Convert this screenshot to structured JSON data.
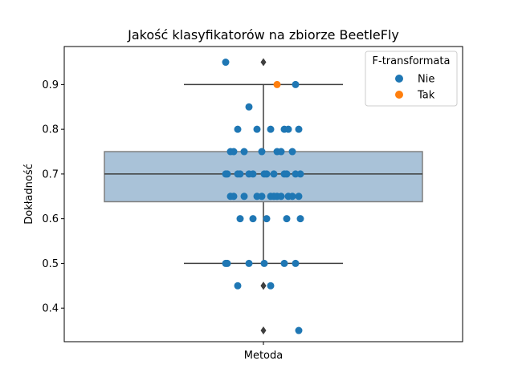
{
  "chart_data": {
    "type": "box",
    "title": "Jakość klasyfikatorów na zbiorze BeetleFly",
    "xlabel": "Metoda",
    "ylabel": "Dokładność",
    "ylim": [
      0.325,
      0.985
    ],
    "yticks": [
      "0.4",
      "0.5",
      "0.6",
      "0.7",
      "0.8",
      "0.9"
    ],
    "box": {
      "q1": 0.638,
      "median": 0.7,
      "q3": 0.75,
      "whisker_low": 0.5,
      "whisker_high": 0.9,
      "fliers": [
        0.95,
        0.45,
        0.45,
        0.35
      ],
      "color": "#a9c2d8"
    },
    "legend": {
      "title": "F-transformata",
      "placement": "top-right",
      "entries": [
        {
          "label": "Nie",
          "color": "#1f77b4"
        },
        {
          "label": "Tak",
          "color": "#ff7f0e"
        }
      ]
    },
    "series": [
      {
        "name": "Nie",
        "color": "#1f77b4",
        "values": [
          0.95,
          0.9,
          0.85,
          0.8,
          0.8,
          0.8,
          0.8,
          0.8,
          0.8,
          0.75,
          0.75,
          0.75,
          0.75,
          0.75,
          0.75,
          0.75,
          0.7,
          0.7,
          0.7,
          0.7,
          0.7,
          0.7,
          0.7,
          0.7,
          0.7,
          0.7,
          0.7,
          0.7,
          0.7,
          0.65,
          0.65,
          0.65,
          0.65,
          0.65,
          0.65,
          0.65,
          0.65,
          0.65,
          0.65,
          0.65,
          0.65,
          0.6,
          0.6,
          0.6,
          0.6,
          0.6,
          0.5,
          0.5,
          0.5,
          0.5,
          0.5,
          0.5,
          0.45,
          0.45,
          0.35
        ]
      },
      {
        "name": "Tak",
        "color": "#ff7f0e",
        "values": [
          0.9
        ]
      }
    ]
  }
}
